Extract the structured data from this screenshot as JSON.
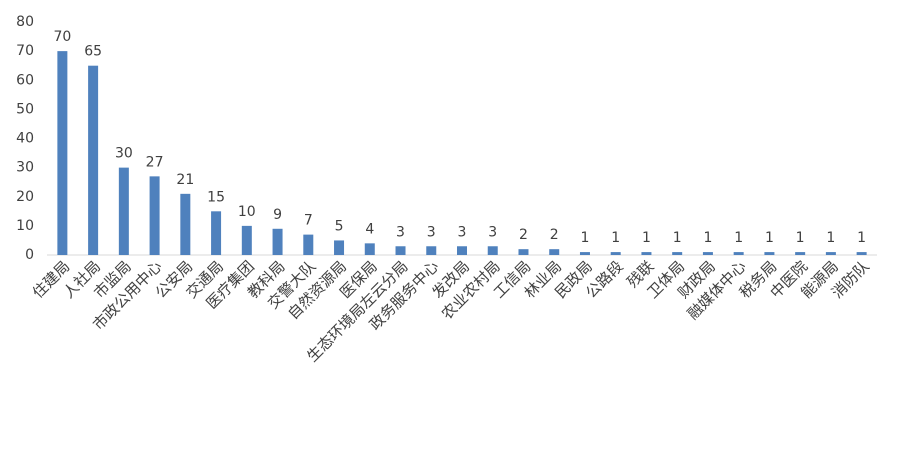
{
  "chart_data": {
    "type": "bar",
    "categories": [
      "住建局",
      "人社局",
      "市监局",
      "市政公用中心",
      "公安局",
      "交通局",
      "医疗集团",
      "教科局",
      "交警大队",
      "自然资源局",
      "医保局",
      "生态环境局左云分局",
      "政务服务中心",
      "发改局",
      "农业农村局",
      "工信局",
      "林业局",
      "民政局",
      "公路段",
      "残联",
      "卫体局",
      "财政局",
      "融媒体中心",
      "税务局",
      "中医院",
      "能源局",
      "消防队"
    ],
    "values": [
      70,
      65,
      30,
      27,
      21,
      15,
      10,
      9,
      7,
      5,
      4,
      3,
      3,
      3,
      3,
      2,
      2,
      1,
      1,
      1,
      1,
      1,
      1,
      1,
      1,
      1,
      1
    ],
    "color": "#4f81bd",
    "ylim": [
      0,
      80
    ],
    "yticks": [
      0,
      10,
      20,
      30,
      40,
      50,
      60,
      70,
      80
    ],
    "grid": false
  }
}
